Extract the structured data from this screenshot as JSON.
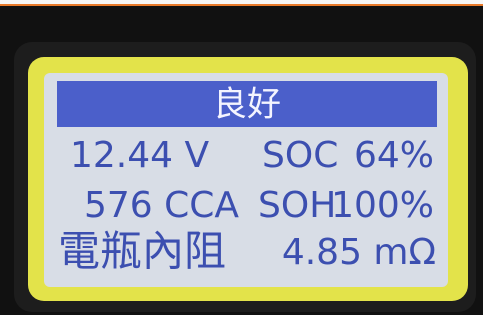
{
  "screen": {
    "status": "良好",
    "rows": [
      [
        "12.44 V",
        "SOC",
        "64%"
      ],
      [
        "576 CCA",
        "SOH",
        "100%"
      ],
      [
        "電瓶內阻",
        "4.85 mΩ"
      ]
    ]
  }
}
